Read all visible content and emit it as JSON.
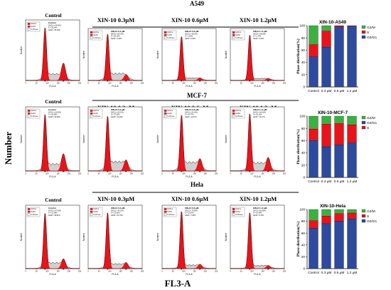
{
  "figure": {
    "y_title": "Number",
    "x_title": "FL3-A"
  },
  "rows": [
    {
      "cell_line": "A549",
      "panels": [
        {
          "title": "Control",
          "kind": "small",
          "legend": [
            "G0/G1",
            "G2/M",
            "S-Phase"
          ],
          "annot": [
            "Control",
            "G0/G1 = 49.40%",
            "S = 20.24%",
            "G2/M = 30.36%"
          ],
          "g1_peak": 0.92,
          "g2_peak": 0.3,
          "s_level": 0.12
        },
        {
          "title": "XIN-10 0.3μM",
          "kind": "big",
          "legend": [
            "G0/G1",
            "G2/M",
            "S-Phase"
          ],
          "annot": [
            "XIN-10 0.3 μM",
            "G0/G1 = 65.14%",
            "S = 25.73%",
            "G2/M = 9.13%"
          ],
          "g1_peak": 0.95,
          "g2_peak": 0.12,
          "s_level": 0.15
        },
        {
          "title": "XIN-10 0.6μM",
          "kind": "big",
          "legend": [
            "G0/G1",
            "G2/M",
            "S-Phase"
          ],
          "annot": [
            "XIN-10 0.6 μM",
            "G0/G1 = 98.10%",
            "S = 1.90%",
            "G2/M = 0.00%"
          ],
          "g1_peak": 0.9,
          "g2_peak": 0.05,
          "s_level": 0.05
        },
        {
          "title": "XIN-10 1.2μM",
          "kind": "big",
          "legend": [
            "G0/G1",
            "G2/M",
            "S-Phase"
          ],
          "annot": [
            "XIN-10 1.2 μM",
            "G0/G1 = 98.63%",
            "S = 1.37%",
            "G2/M = 0.00%"
          ],
          "g1_peak": 0.93,
          "g2_peak": 0.04,
          "s_level": 0.04
        }
      ]
    },
    {
      "cell_line": "MCF-7",
      "panels": [
        {
          "title": "Control",
          "kind": "small",
          "legend": [
            "G0/G1",
            "G2/M",
            "S-Phase"
          ],
          "annot": [
            "Control",
            "G0/G1 = 60.02%",
            "S = 18.99%",
            "G2/M = 20.99%"
          ],
          "g1_peak": 0.93,
          "g2_peak": 0.28,
          "s_level": 0.12
        },
        {
          "title": "XIN-10 0.3μM",
          "kind": "small",
          "legend": [
            "G0/G1",
            "G2/M",
            "S-Phase"
          ],
          "annot": [
            "XIN-10 0.3 μM",
            "G0/G1 = 50.21%",
            "S = 37.33%",
            "G2/M = 12.46%"
          ],
          "g1_peak": 0.9,
          "g2_peak": 0.18,
          "s_level": 0.16
        },
        {
          "title": "XIN-10 0.6μM",
          "kind": "small",
          "legend": [
            "G0/G1",
            "G2/M",
            "S-Phase"
          ],
          "annot": [
            "XIN-10 0.6 μM",
            "G0/G1 = 53.16%",
            "S = 34.77%",
            "G2/M = 12.07%"
          ],
          "g1_peak": 0.92,
          "g2_peak": 0.2,
          "s_level": 0.15
        },
        {
          "title": "XIN-10 1.2μM",
          "kind": "small",
          "legend": [
            "G0/G1",
            "G2/M",
            "S-Phase"
          ],
          "annot": [
            "XIN-10 1.2 μM",
            "G0/G1 = 56.40%",
            "S = 30.13%",
            "G2/M = 13.47%"
          ],
          "g1_peak": 0.94,
          "g2_peak": 0.22,
          "s_level": 0.14
        }
      ]
    },
    {
      "cell_line": "Hela",
      "panels": [
        {
          "title": "Control",
          "kind": "small",
          "legend": [
            "G0/G1",
            "G2/M",
            "S-Phase"
          ],
          "annot": [
            "Control",
            "G0/G1 = 67.81%",
            "S = 13.38%",
            "G2/M = 18.81%"
          ],
          "g1_peak": 0.92,
          "g2_peak": 0.16,
          "s_level": 0.1
        },
        {
          "title": "XIN-10 0.3μM",
          "kind": "big",
          "legend": [
            "G0/G1",
            "G2/M",
            "S-Phase"
          ],
          "annot": [
            "XIN-10 0.3 μM",
            "G0/G1 = 76.21%",
            "S = 13.05%",
            "G2/M = 10.74%"
          ],
          "g1_peak": 0.93,
          "g2_peak": 0.1,
          "s_level": 0.08
        },
        {
          "title": "XIN-10 0.6μM",
          "kind": "big",
          "legend": [
            "G0/G1",
            "G2/M",
            "S-Phase"
          ],
          "annot": [
            "XIN-10 0.6 μM",
            "G0/G1 = 79.50%",
            "S = 12.97%",
            "G2/M = 7.53%"
          ],
          "g1_peak": 0.95,
          "g2_peak": 0.07,
          "s_level": 0.06
        },
        {
          "title": "XIN-10 1.2μM",
          "kind": "big",
          "legend": [
            "G0/G1",
            "G2/M",
            "S-Phase"
          ],
          "annot": [
            "XIN-10 1.2 μM",
            "G0/G1 = 83.82%",
            "S = 10.45%",
            "G2/M = 5.73%"
          ],
          "g1_peak": 0.93,
          "g2_peak": 0.05,
          "s_level": 0.05
        }
      ]
    }
  ],
  "histogram_axis": {
    "x_label": "FL3-A",
    "y_label": "Number",
    "ticks": [
      "0",
      "50",
      "100",
      "150",
      "200",
      "250"
    ]
  },
  "colors": {
    "g1": "#e8141a",
    "g2": "#e8141a",
    "s": "#c8c8c8",
    "stack_g0g1": "#2e4a9e",
    "stack_s": "#e8141a",
    "stack_g2m": "#3cb043"
  },
  "chart_data": [
    {
      "type": "bar",
      "stacked": true,
      "title": "XIN-10-A549",
      "ylabel": "Phase distribution(%)",
      "categories": [
        "Control",
        "0.3 μM",
        "0.6 μM",
        "1.2 μM"
      ],
      "ylim": [
        0,
        100
      ],
      "yticks": [
        0,
        20,
        40,
        60,
        80,
        100
      ],
      "legend_order": [
        "G2/M",
        "S",
        "G0/G1"
      ],
      "series": [
        {
          "name": "G0/G1",
          "values": [
            49,
            65,
            98,
            99
          ]
        },
        {
          "name": "S",
          "values": [
            20,
            26,
            2,
            1
          ]
        },
        {
          "name": "G2/M",
          "values": [
            31,
            9,
            0,
            0
          ]
        }
      ]
    },
    {
      "type": "bar",
      "stacked": true,
      "title": "XIN-10-MCF-7",
      "ylabel": "Phase distribution(%)",
      "categories": [
        "Control",
        "0.3 μM",
        "0.6 μM",
        "1.2 μM"
      ],
      "ylim": [
        0,
        100
      ],
      "yticks": [
        0,
        20,
        40,
        60,
        80,
        100
      ],
      "legend_order": [
        "G2/M",
        "G0/G1",
        "S"
      ],
      "series": [
        {
          "name": "G0/G1",
          "values": [
            60,
            50,
            53,
            56
          ]
        },
        {
          "name": "S",
          "values": [
            19,
            37,
            35,
            30
          ]
        },
        {
          "name": "G2/M",
          "values": [
            21,
            13,
            12,
            14
          ]
        }
      ]
    },
    {
      "type": "bar",
      "stacked": true,
      "title": "XIN-10-Hela",
      "ylabel": "Phase distribution(%)",
      "categories": [
        "Control",
        "0.3 μM",
        "0.6 μM",
        "1.2 μM"
      ],
      "ylim": [
        0,
        100
      ],
      "yticks": [
        0,
        20,
        40,
        60,
        80,
        100
      ],
      "legend_order": [
        "G2/M",
        "S",
        "G0/G1"
      ],
      "series": [
        {
          "name": "G0/G1",
          "values": [
            68,
            76,
            80,
            84
          ]
        },
        {
          "name": "S",
          "values": [
            13,
            13,
            13,
            10
          ]
        },
        {
          "name": "G2/M",
          "values": [
            19,
            11,
            7,
            6
          ]
        }
      ]
    }
  ]
}
